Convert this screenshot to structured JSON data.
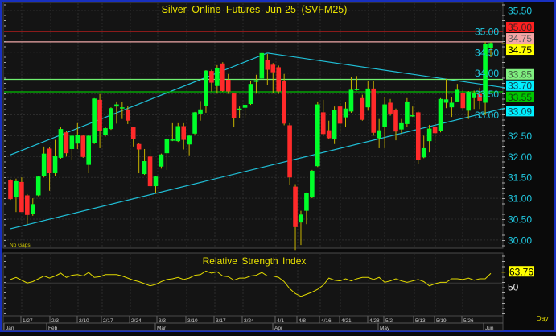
{
  "chart_data": [
    {
      "type": "candlestick",
      "title": "Silver Online Futures Jun-25 (SVFM25)",
      "note": "No Gaps",
      "ylim": [
        29.8,
        35.6
      ],
      "y_ticks": [
        "35.50",
        "35.00",
        "34.50",
        "34.00",
        "33.50",
        "33.00",
        "32.50",
        "32.00",
        "31.50",
        "31.00",
        "30.50",
        "30.00"
      ],
      "grid": true,
      "colors": {
        "up": "#00ff2a",
        "down": "#ff2a2a",
        "wick": "#c8b400",
        "background": "#141414",
        "axis_text": "#20c8e0",
        "title": "#e8e000",
        "trendline": "#20c0d8"
      },
      "ohlc": [
        [
          31.44,
          31.46,
          30.96,
          30.98
        ],
        [
          31.02,
          31.47,
          30.67,
          31.41
        ],
        [
          31.39,
          31.5,
          30.67,
          30.67
        ],
        [
          31.07,
          31.1,
          30.38,
          30.6
        ],
        [
          30.62,
          31.0,
          30.58,
          30.86
        ],
        [
          31.07,
          31.54,
          31.05,
          31.52
        ],
        [
          31.54,
          32.24,
          31.5,
          32.07
        ],
        [
          32.19,
          32.22,
          31.18,
          31.6
        ],
        [
          31.6,
          32.4,
          31.54,
          32.02
        ],
        [
          31.97,
          32.7,
          31.95,
          32.66
        ],
        [
          32.58,
          32.62,
          32.0,
          32.08
        ],
        [
          32.18,
          32.52,
          31.92,
          32.5
        ],
        [
          32.31,
          32.8,
          32.18,
          32.52
        ],
        [
          32.5,
          32.52,
          31.97,
          31.99
        ],
        [
          31.8,
          32.52,
          31.6,
          32.5
        ],
        [
          32.32,
          33.4,
          32.3,
          33.39
        ],
        [
          33.36,
          33.5,
          32.2,
          32.61
        ],
        [
          32.52,
          32.7,
          32.48,
          32.68
        ],
        [
          32.66,
          33.18,
          32.64,
          33.16
        ],
        [
          33.2,
          33.32,
          32.79,
          33.25
        ],
        [
          33.15,
          33.3,
          32.9,
          33.18
        ],
        [
          33.13,
          33.22,
          32.78,
          32.86
        ],
        [
          32.7,
          32.72,
          32.24,
          32.42
        ],
        [
          32.3,
          32.32,
          31.6,
          32.17
        ],
        [
          31.58,
          32.18,
          31.56,
          31.89
        ],
        [
          32.0,
          32.18,
          31.25,
          31.29
        ],
        [
          31.29,
          31.54,
          31.13,
          31.52
        ],
        [
          31.76,
          32.07,
          31.71,
          32.05
        ],
        [
          32.08,
          32.44,
          31.68,
          32.42
        ],
        [
          32.38,
          32.8,
          32.37,
          32.41
        ],
        [
          32.37,
          32.8,
          32.35,
          32.73
        ],
        [
          32.73,
          32.8,
          32.17,
          32.4
        ],
        [
          32.29,
          32.52,
          32.03,
          32.5
        ],
        [
          32.55,
          33.07,
          32.53,
          33.06
        ],
        [
          33.03,
          33.33,
          32.86,
          33.13
        ],
        [
          33.21,
          34.07,
          33.05,
          34.06
        ],
        [
          34.05,
          34.08,
          33.56,
          33.77
        ],
        [
          33.69,
          34.19,
          33.51,
          34.13
        ],
        [
          34.23,
          34.26,
          33.55,
          33.57
        ],
        [
          33.84,
          33.98,
          33.5,
          33.56
        ],
        [
          33.51,
          33.53,
          32.7,
          32.92
        ],
        [
          33.12,
          33.2,
          32.92,
          33.15
        ],
        [
          33.17,
          33.26,
          32.92,
          33.24
        ],
        [
          33.26,
          33.82,
          33.24,
          33.74
        ],
        [
          33.79,
          33.96,
          33.51,
          33.83
        ],
        [
          33.87,
          34.49,
          33.85,
          34.48
        ],
        [
          34.32,
          34.46,
          33.72,
          34.08
        ],
        [
          34.2,
          34.24,
          33.51,
          34.02
        ],
        [
          34.14,
          34.18,
          33.5,
          33.56
        ],
        [
          33.82,
          33.98,
          32.75,
          32.79
        ],
        [
          32.75,
          32.8,
          31.32,
          31.5
        ],
        [
          31.28,
          31.34,
          29.76,
          30.31
        ],
        [
          30.42,
          30.7,
          29.88,
          30.61
        ],
        [
          30.7,
          31.14,
          30.38,
          31.12
        ],
        [
          31.02,
          31.68,
          31.0,
          31.66
        ],
        [
          31.77,
          33.32,
          31.75,
          33.25
        ],
        [
          33.06,
          33.36,
          32.5,
          32.54
        ],
        [
          32.63,
          32.86,
          32.42,
          32.44
        ],
        [
          32.41,
          33.2,
          32.3,
          33.12
        ],
        [
          33.2,
          33.28,
          32.58,
          32.79
        ],
        [
          32.94,
          33.31,
          32.72,
          33.15
        ],
        [
          33.08,
          33.9,
          33.05,
          33.6
        ],
        [
          33.6,
          33.93,
          33.58,
          33.62
        ],
        [
          33.4,
          33.48,
          32.86,
          32.88
        ],
        [
          33.18,
          33.8,
          33.1,
          33.63
        ],
        [
          33.63,
          33.82,
          32.5,
          32.57
        ],
        [
          32.44,
          32.9,
          32.2,
          32.63
        ],
        [
          32.71,
          33.42,
          32.2,
          33.25
        ],
        [
          33.29,
          33.38,
          32.98,
          33.03
        ],
        [
          33.12,
          33.15,
          32.39,
          32.6
        ],
        [
          32.65,
          32.9,
          32.56,
          32.8
        ],
        [
          32.78,
          33.4,
          32.72,
          33.32
        ],
        [
          32.98,
          33.2,
          32.95,
          32.99
        ],
        [
          33.06,
          33.08,
          31.82,
          31.92
        ],
        [
          31.98,
          32.5,
          31.96,
          32.2
        ],
        [
          32.37,
          32.76,
          32.1,
          32.67
        ],
        [
          32.72,
          32.8,
          32.34,
          32.56
        ],
        [
          32.61,
          33.4,
          32.58,
          33.38
        ],
        [
          33.29,
          33.86,
          33.16,
          33.37
        ],
        [
          33.18,
          33.42,
          32.95,
          33.29
        ],
        [
          33.32,
          33.74,
          33.3,
          33.6
        ],
        [
          33.53,
          33.6,
          33.1,
          33.16
        ],
        [
          33.1,
          33.57,
          32.9,
          33.55
        ],
        [
          33.4,
          33.58,
          33.14,
          33.52
        ],
        [
          33.5,
          33.65,
          33.14,
          33.34
        ],
        [
          33.29,
          34.75,
          32.99,
          34.69
        ],
        [
          34.6,
          34.75,
          34.38,
          34.72
        ]
      ],
      "horizontal_lines": [
        {
          "price": 35.0,
          "label": "35.00",
          "color": "#ff2020",
          "label_bg": "#ff2020",
          "label_color": "#402020"
        },
        {
          "price": 34.75,
          "label": "34.75",
          "color": "#f0a8a8",
          "label_bg": "#f4a4a4",
          "label_color": "#606060"
        },
        {
          "price": 33.85,
          "label": "33.85",
          "color": "#70f070",
          "label_bg": "#80f080",
          "label_color": "#406040"
        },
        {
          "price": 33.55,
          "label": "33.55",
          "color": "#00c000",
          "label_bg": "#00c800",
          "label_color": "#104010"
        }
      ],
      "price_markers": [
        {
          "price": 34.75,
          "label": "34.75",
          "bg": "#ffff00",
          "color": "#000000"
        },
        {
          "price": 33.7,
          "label": "33.70",
          "bg": "#00f0ff",
          "color": "#104050"
        },
        {
          "price": 33.09,
          "label": "33.09",
          "bg": "#00f0ff",
          "color": "#104050"
        }
      ],
      "trendlines": [
        {
          "from": [
            0,
            32.04
          ],
          "to": [
            46,
            34.48
          ]
        },
        {
          "from": [
            46,
            34.48
          ],
          "to": [
            88.5,
            33.65
          ]
        },
        {
          "from": [
            0,
            30.27
          ],
          "to": [
            88.5,
            33.16
          ]
        }
      ]
    },
    {
      "type": "line",
      "title": "Relative Strength Index",
      "ylim": [
        0,
        90
      ],
      "y_ticks": [
        "50"
      ],
      "last_value": "63.76",
      "colors": {
        "line": "#e0d800",
        "label_bg": "#ffff00"
      },
      "values": [
        55,
        58,
        54,
        50,
        52,
        56,
        60,
        57,
        60,
        64,
        58,
        61,
        62,
        60,
        65,
        58,
        59,
        62,
        62,
        62,
        60,
        57,
        54,
        52,
        49,
        46,
        48,
        52,
        55,
        56,
        58,
        55,
        57,
        61,
        62,
        67,
        64,
        66,
        60,
        59,
        54,
        57,
        57,
        60,
        61,
        65,
        60,
        60,
        58,
        52,
        42,
        35,
        31,
        34,
        37,
        41,
        47,
        57,
        54,
        53,
        56,
        53,
        56,
        58,
        58,
        55,
        58,
        51,
        53,
        56,
        53,
        51,
        53,
        55,
        52,
        46,
        49,
        51,
        51,
        56,
        56,
        55,
        57,
        54,
        56,
        56,
        63.76
      ]
    }
  ],
  "x_axis": {
    "weeks": [
      "1/27",
      "2/3",
      "2/10",
      "2/17",
      "2/24",
      "3/3",
      "3/10",
      "3/17",
      "3/24",
      "4/1",
      "4/8",
      "4/16",
      "4/21",
      "4/28",
      "5/2",
      "5/13",
      "5/19",
      "5/26"
    ],
    "months": [
      "Jan",
      "Feb",
      "Mar",
      "Apr",
      "May",
      "Jun"
    ],
    "interval": "Day"
  }
}
